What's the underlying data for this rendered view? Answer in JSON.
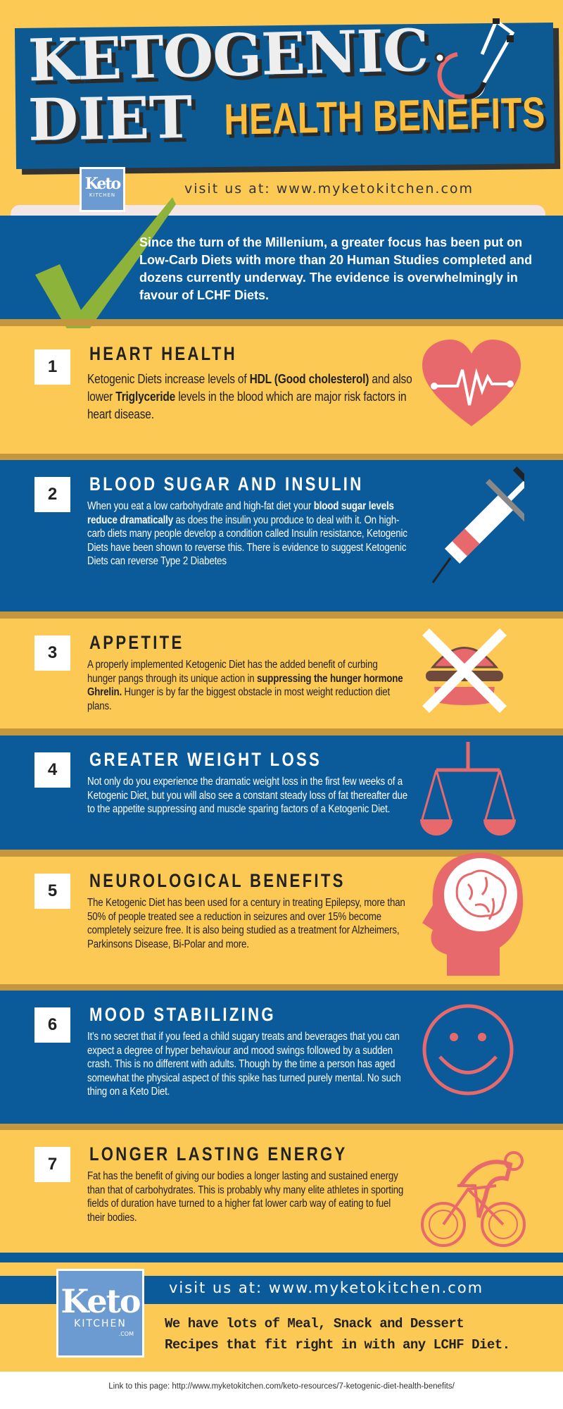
{
  "header": {
    "title_line1": "KETOGENIC",
    "title_line2": "DIET",
    "subtitle": "HEALTH BENEFITS",
    "visit": "visit us at: www.myketokitchen.com"
  },
  "logo": {
    "my": "My",
    "keto": "Keto",
    "kitchen": "KITCHEN",
    "com": ".COM"
  },
  "intro": {
    "text": "Since the turn of the Millenium, a greater focus has been put on Low-Carb Diets with more than 20 Human Studies completed and dozens currently underway. The evidence is overwhelmingly in favour of LCHF Diets."
  },
  "sections": [
    {
      "num": "1",
      "title": "HEART HEALTH",
      "icon": "heart-pulse-icon",
      "parts": [
        "Ketogenic Diets increase levels of ",
        "HDL (Good cholesterol)",
        " and also lower ",
        "Triglyceride",
        " levels in the blood which are major risk factors in heart disease."
      ]
    },
    {
      "num": "2",
      "title": "BLOOD SUGAR AND INSULIN",
      "icon": "syringe-icon",
      "parts": [
        "When you eat a low carbohydrate and high-fat diet your ",
        "blood sugar levels reduce dramatically",
        " as does the insulin you produce to deal with it. On high-carb diets many people develop a condition called Insulin resistance, Ketogenic Diets have been shown to reverse this. There is evidence to suggest Ketogenic Diets can reverse Type 2 Diabetes"
      ]
    },
    {
      "num": "3",
      "title": "APPETITE",
      "icon": "crossed-burger-icon",
      "parts": [
        "A properly implemented Ketogenic Diet has the added benefit of curbing hunger pangs through its unique action in ",
        "suppressing the hunger hormone Ghrelin.",
        " Hunger is by far the biggest obstacle in most weight reduction diet plans."
      ]
    },
    {
      "num": "4",
      "title": "GREATER WEIGHT LOSS",
      "icon": "scale-icon",
      "parts": [
        "Not only do you experience the dramatic weight loss in the first few weeks of a Ketogenic Diet, but you will also see a constant steady loss of fat thereafter due to the appetite suppressing and muscle sparing factors of a Ketogenic Diet."
      ]
    },
    {
      "num": "5",
      "title": "NEUROLOGICAL BENEFITS",
      "icon": "head-brain-icon",
      "parts": [
        "The Ketogenic Diet has been used for a century in treating Epilepsy, more than 50% of people treated see a reduction in seizures and over 15% become completely seizure free. It is also being studied as a treatment for Alzheimers, Parkinsons Disease, Bi-Polar and more."
      ]
    },
    {
      "num": "6",
      "title": "MOOD STABILIZING",
      "icon": "smiley-icon",
      "parts": [
        "It's no secret that if you feed a child sugary treats and beverages that you can expect a degree of hyper behaviour and mood swings followed by a sudden crash. This is no different with adults. Though by the time a person has aged somewhat the physical aspect of this spike has turned purely mental. No such thing on a Keto Diet."
      ]
    },
    {
      "num": "7",
      "title": "LONGER LASTING ENERGY",
      "icon": "cyclist-icon",
      "parts": [
        "Fat has the benefit of giving our bodies a longer lasting and sustained energy than that of carbohydrates. This is probably why many elite athletes in sporting fields of duration have turned to a higher fat lower carb way of eating to fuel their bodies."
      ]
    }
  ],
  "footer": {
    "visit": "visit us at: www.myketokitchen.com",
    "recipes_line1": "We have lots of Meal, Snack and Dessert",
    "recipes_line2": "Recipes that fit right in with any LCHF Diet.",
    "link": "Link to this page: http://www.myketokitchen.com/keto-resources/7-ketogenic-diet-health-benefits/"
  },
  "colors": {
    "yellow": "#fcc954",
    "blue": "#0b5b9b",
    "stripe": "#c4963e",
    "accent": "#e8696b",
    "check": "#8db33a"
  }
}
